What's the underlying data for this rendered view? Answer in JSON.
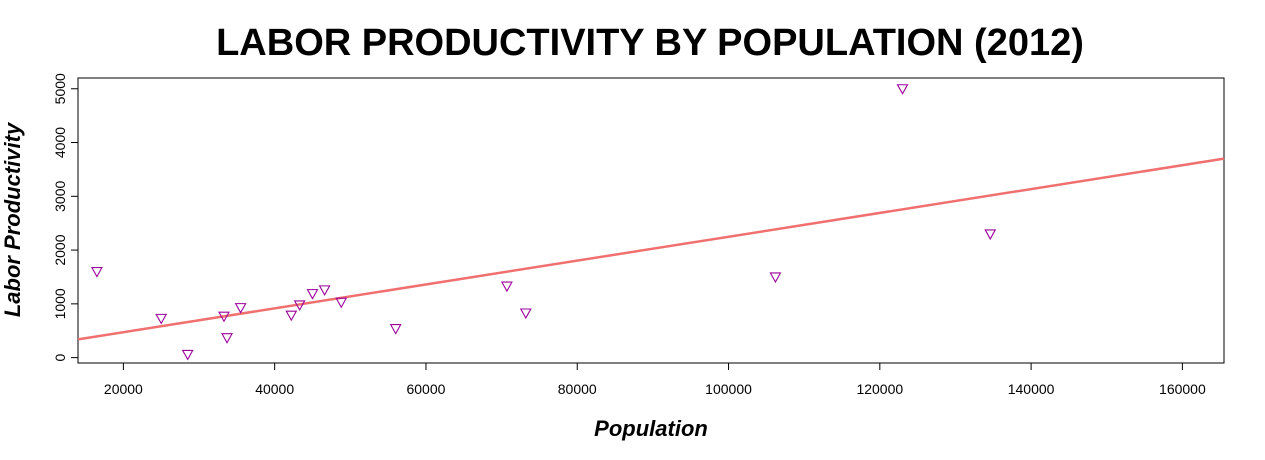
{
  "chart_data": {
    "type": "scatter",
    "title": "LABOR PRODUCTIVITY BY POPULATION (2012)",
    "xlabel": "Population",
    "ylabel": "Labor Productivity",
    "xlim": [
      14000,
      165500
    ],
    "ylim": [
      -100,
      5200
    ],
    "x_ticks": [
      20000,
      40000,
      60000,
      80000,
      100000,
      120000,
      140000,
      160000
    ],
    "y_ticks": [
      0,
      1000,
      2000,
      3000,
      4000,
      5000
    ],
    "grid": false,
    "legend": "none",
    "marker": "down-triangle",
    "marker_color": "#9b009b",
    "points": [
      {
        "x": 16500,
        "y": 1600
      },
      {
        "x": 25000,
        "y": 730
      },
      {
        "x": 28500,
        "y": 60
      },
      {
        "x": 33300,
        "y": 770
      },
      {
        "x": 33700,
        "y": 370
      },
      {
        "x": 35500,
        "y": 930
      },
      {
        "x": 42200,
        "y": 790
      },
      {
        "x": 43300,
        "y": 980
      },
      {
        "x": 45000,
        "y": 1190
      },
      {
        "x": 46600,
        "y": 1260
      },
      {
        "x": 48800,
        "y": 1030
      },
      {
        "x": 56000,
        "y": 540
      },
      {
        "x": 70700,
        "y": 1330
      },
      {
        "x": 73200,
        "y": 830
      },
      {
        "x": 106200,
        "y": 1500
      },
      {
        "x": 123000,
        "y": 5000
      },
      {
        "x": 134600,
        "y": 2300
      }
    ],
    "trendline": {
      "color": "#f07070",
      "x": [
        14000,
        165500
      ],
      "y": [
        340,
        3700
      ]
    }
  }
}
